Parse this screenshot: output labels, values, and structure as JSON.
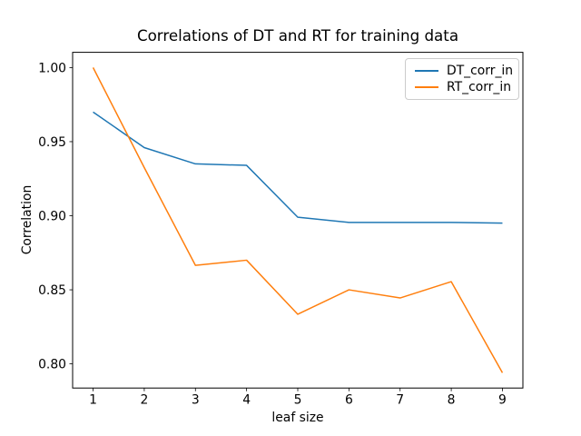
{
  "figure": {
    "background": "#ffffff"
  },
  "chart_data": {
    "type": "line",
    "title": "Correlations of DT and RT for training data",
    "xlabel": "leaf size",
    "ylabel": "Correlation",
    "x": [
      1,
      2,
      3,
      4,
      5,
      6,
      7,
      8,
      9
    ],
    "series": [
      {
        "name": "DT_corr_in",
        "color": "#1f77b4",
        "values": [
          0.97,
          0.946,
          0.935,
          0.934,
          0.899,
          0.8955,
          0.8955,
          0.8955,
          0.895
        ]
      },
      {
        "name": "RT_corr_in",
        "color": "#ff7f0e",
        "values": [
          1.0,
          0.9325,
          0.8665,
          0.87,
          0.8335,
          0.85,
          0.8445,
          0.8555,
          0.794
        ]
      }
    ],
    "xlim": [
      0.6,
      9.4
    ],
    "ylim": [
      0.7837,
      1.0103
    ],
    "xticks": {
      "values": [
        1,
        2,
        3,
        4,
        5,
        6,
        7,
        8,
        9
      ],
      "labels": [
        "1",
        "2",
        "3",
        "4",
        "5",
        "6",
        "7",
        "8",
        "9"
      ]
    },
    "yticks": {
      "values": [
        0.8,
        0.85,
        0.9,
        0.95,
        1.0
      ],
      "labels": [
        "0.80",
        "0.85",
        "0.90",
        "0.95",
        "1.00"
      ]
    },
    "grid": false,
    "legend": {
      "position": "upper right",
      "entries": [
        "DT_corr_in",
        "RT_corr_in"
      ]
    },
    "axis_color": "#000000",
    "line_width": 1.5
  }
}
